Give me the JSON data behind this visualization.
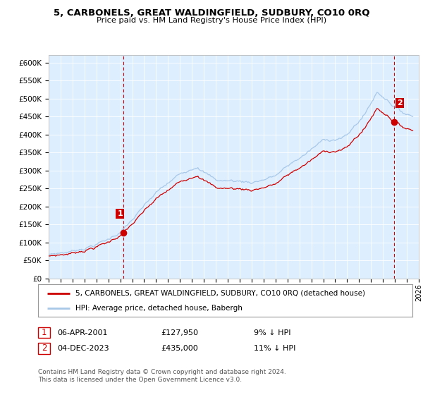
{
  "title": "5, CARBONELS, GREAT WALDINGFIELD, SUDBURY, CO10 0RQ",
  "subtitle": "Price paid vs. HM Land Registry's House Price Index (HPI)",
  "ylabel_ticks": [
    "£0",
    "£50K",
    "£100K",
    "£150K",
    "£200K",
    "£250K",
    "£300K",
    "£350K",
    "£400K",
    "£450K",
    "£500K",
    "£550K",
    "£600K"
  ],
  "ytick_values": [
    0,
    50000,
    100000,
    150000,
    200000,
    250000,
    300000,
    350000,
    400000,
    450000,
    500000,
    550000,
    600000
  ],
  "ylim": [
    0,
    620000
  ],
  "sale1_date_num": 2001.27,
  "sale1_price": 127950,
  "sale1_label": "1",
  "sale2_date_num": 2023.92,
  "sale2_price": 435000,
  "sale2_label": "2",
  "hpi_color": "#a8c8e8",
  "sale_color": "#cc0000",
  "vline_color": "#cc0000",
  "background_color": "#ffffff",
  "plot_bg_color": "#ddeeff",
  "grid_color": "#ffffff",
  "legend_label_sale": "5, CARBONELS, GREAT WALDINGFIELD, SUDBURY, CO10 0RQ (detached house)",
  "legend_label_hpi": "HPI: Average price, detached house, Babergh",
  "footer": "Contains HM Land Registry data © Crown copyright and database right 2024.\nThis data is licensed under the Open Government Licence v3.0.",
  "xmin": 1995,
  "xmax": 2026
}
